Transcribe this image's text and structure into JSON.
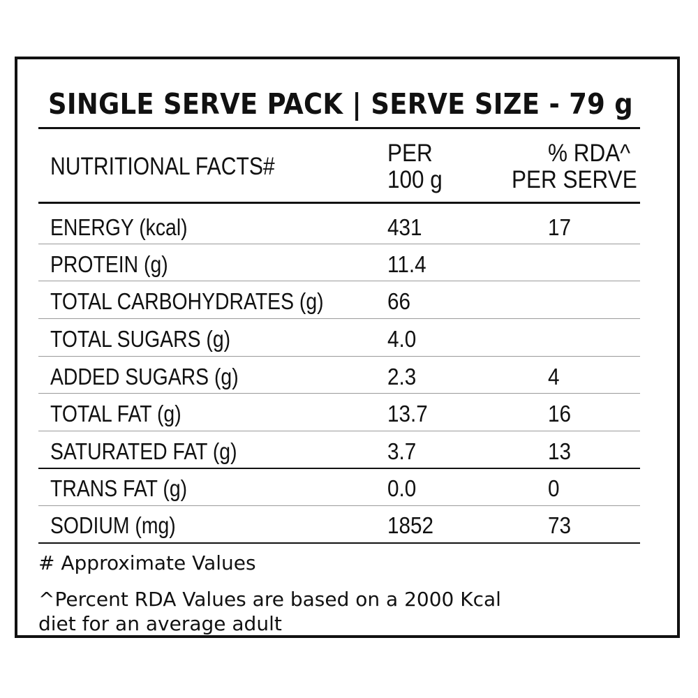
{
  "label": {
    "title": "SINGLE SERVE PACK | SERVE SIZE - 79 g",
    "header": {
      "col1": "NUTRITIONAL FACTS#",
      "col2_line1": "PER",
      "col2_line2": "100 g",
      "col3_line1": "% RDA^",
      "col3_line2": "PER SERVE"
    },
    "rows": [
      {
        "name": "ENERGY (kcal)",
        "per100": "431",
        "rda": "17"
      },
      {
        "name": "PROTEIN (g)",
        "per100": "11.4",
        "rda": ""
      },
      {
        "name": "TOTAL CARBOHYDRATES (g)",
        "per100": "66",
        "rda": ""
      },
      {
        "name": "TOTAL SUGARS (g)",
        "per100": "4.0",
        "rda": ""
      },
      {
        "name": "ADDED SUGARS (g)",
        "per100": "2.3",
        "rda": "4"
      },
      {
        "name": "TOTAL FAT (g)",
        "per100": "13.7",
        "rda": "16"
      },
      {
        "name": "SATURATED FAT (g)",
        "per100": "3.7",
        "rda": "13"
      },
      {
        "name": "TRANS FAT (g)",
        "per100": "0.0",
        "rda": "0"
      },
      {
        "name": "SODIUM (mg)",
        "per100": "1852",
        "rda": "73"
      }
    ],
    "footnote_approx": "# Approximate Values",
    "footnote_rda_line1": "^Percent RDA Values are based on a 2000 Kcal",
    "footnote_rda_line2": "diet for an average adult"
  },
  "colors": {
    "text": "#111111",
    "border": "#111111",
    "accent_mark": "#29b6c8"
  }
}
